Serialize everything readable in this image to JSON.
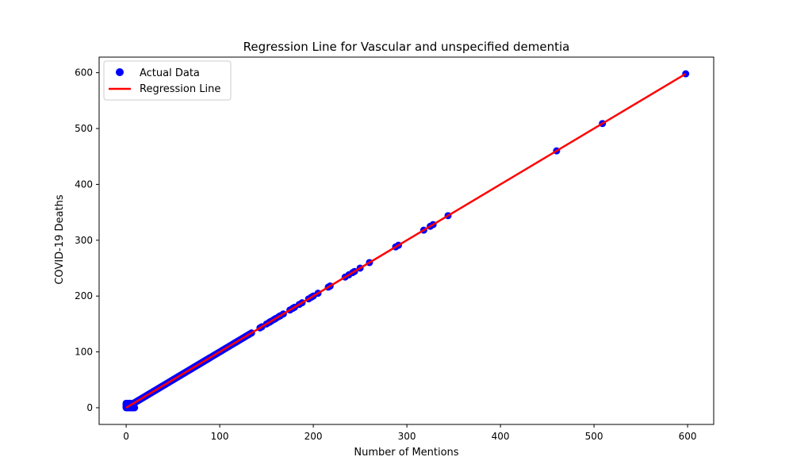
{
  "chart_data": {
    "type": "scatter",
    "title": "Regression Line for Vascular and unspecified dementia",
    "xlabel": "Number of Mentions",
    "ylabel": "COVID-19 Deaths",
    "xlim": [
      -28.9,
      627.9
    ],
    "ylim": [
      -29.9,
      627.9
    ],
    "xticks": [
      0,
      100,
      200,
      300,
      400,
      500,
      600
    ],
    "yticks": [
      0,
      100,
      200,
      300,
      400,
      500,
      600
    ],
    "grid": false,
    "legend": {
      "placement": "top-left",
      "entries": [
        "Actual Data",
        "Regression Line"
      ]
    },
    "colors": {
      "points": "#0000ff",
      "line": "#ff0000"
    },
    "series": [
      {
        "name": "Actual Data",
        "kind": "scatter",
        "points": [
          [
            0,
            0
          ],
          [
            0,
            1
          ],
          [
            0,
            2
          ],
          [
            0,
            4
          ],
          [
            0,
            6
          ],
          [
            0,
            8
          ],
          [
            1,
            0
          ],
          [
            1,
            1
          ],
          [
            1,
            3
          ],
          [
            1,
            7
          ],
          [
            2,
            0
          ],
          [
            2,
            2
          ],
          [
            2,
            5
          ],
          [
            2,
            8
          ],
          [
            3,
            0
          ],
          [
            3,
            3
          ],
          [
            3,
            6
          ],
          [
            4,
            0
          ],
          [
            4,
            4
          ],
          [
            4,
            8
          ],
          [
            5,
            0
          ],
          [
            5,
            5
          ],
          [
            5,
            8
          ],
          [
            6,
            0
          ],
          [
            6,
            6
          ],
          [
            7,
            0
          ],
          [
            7,
            7
          ],
          [
            8,
            0
          ],
          [
            8,
            8
          ],
          [
            9,
            0
          ],
          [
            9,
            9
          ],
          [
            10,
            10
          ],
          [
            11,
            11
          ],
          [
            12,
            12
          ],
          [
            13,
            13
          ],
          [
            14,
            14
          ],
          [
            15,
            15
          ],
          [
            16,
            16
          ],
          [
            17,
            17
          ],
          [
            18,
            18
          ],
          [
            19,
            19
          ],
          [
            20,
            20
          ],
          [
            21,
            21
          ],
          [
            22,
            22
          ],
          [
            23,
            23
          ],
          [
            24,
            24
          ],
          [
            25,
            25
          ],
          [
            26,
            26
          ],
          [
            27,
            27
          ],
          [
            28,
            28
          ],
          [
            29,
            29
          ],
          [
            30,
            30
          ],
          [
            31,
            31
          ],
          [
            32,
            32
          ],
          [
            33,
            33
          ],
          [
            34,
            34
          ],
          [
            35,
            35
          ],
          [
            36,
            36
          ],
          [
            37,
            37
          ],
          [
            38,
            38
          ],
          [
            39,
            39
          ],
          [
            40,
            40
          ],
          [
            41,
            41
          ],
          [
            42,
            42
          ],
          [
            43,
            43
          ],
          [
            44,
            44
          ],
          [
            45,
            45
          ],
          [
            46,
            46
          ],
          [
            47,
            47
          ],
          [
            48,
            48
          ],
          [
            49,
            49
          ],
          [
            50,
            50
          ],
          [
            51,
            51
          ],
          [
            52,
            52
          ],
          [
            53,
            53
          ],
          [
            54,
            54
          ],
          [
            55,
            55
          ],
          [
            56,
            56
          ],
          [
            57,
            57
          ],
          [
            58,
            58
          ],
          [
            59,
            59
          ],
          [
            60,
            60
          ],
          [
            61,
            61
          ],
          [
            62,
            62
          ],
          [
            63,
            63
          ],
          [
            64,
            64
          ],
          [
            65,
            65
          ],
          [
            66,
            66
          ],
          [
            67,
            67
          ],
          [
            68,
            68
          ],
          [
            69,
            69
          ],
          [
            70,
            70
          ],
          [
            71,
            71
          ],
          [
            72,
            72
          ],
          [
            73,
            73
          ],
          [
            74,
            74
          ],
          [
            75,
            75
          ],
          [
            76,
            76
          ],
          [
            77,
            77
          ],
          [
            78,
            78
          ],
          [
            79,
            79
          ],
          [
            80,
            80
          ],
          [
            81,
            81
          ],
          [
            82,
            82
          ],
          [
            83,
            83
          ],
          [
            84,
            84
          ],
          [
            85,
            85
          ],
          [
            86,
            86
          ],
          [
            87,
            87
          ],
          [
            88,
            88
          ],
          [
            89,
            89
          ],
          [
            90,
            90
          ],
          [
            92,
            92
          ],
          [
            94,
            94
          ],
          [
            96,
            96
          ],
          [
            98,
            98
          ],
          [
            100,
            100
          ],
          [
            102,
            102
          ],
          [
            104,
            104
          ],
          [
            106,
            106
          ],
          [
            108,
            108
          ],
          [
            110,
            110
          ],
          [
            112,
            112
          ],
          [
            114,
            114
          ],
          [
            116,
            116
          ],
          [
            118,
            118
          ],
          [
            120,
            120
          ],
          [
            122,
            122
          ],
          [
            124,
            124
          ],
          [
            126,
            126
          ],
          [
            128,
            128
          ],
          [
            130,
            130
          ],
          [
            132,
            132
          ],
          [
            134,
            134
          ],
          [
            143,
            143
          ],
          [
            145,
            145
          ],
          [
            150,
            150
          ],
          [
            153,
            153
          ],
          [
            155,
            155
          ],
          [
            158,
            158
          ],
          [
            160,
            160
          ],
          [
            163,
            163
          ],
          [
            165,
            165
          ],
          [
            168,
            168
          ],
          [
            175,
            175
          ],
          [
            178,
            178
          ],
          [
            180,
            180
          ],
          [
            185,
            185
          ],
          [
            188,
            188
          ],
          [
            195,
            195
          ],
          [
            198,
            198
          ],
          [
            200,
            200
          ],
          [
            205,
            205
          ],
          [
            216,
            216
          ],
          [
            218,
            218
          ],
          [
            234,
            234
          ],
          [
            238,
            238
          ],
          [
            242,
            242
          ],
          [
            244,
            244
          ],
          [
            250,
            250
          ],
          [
            260,
            260
          ],
          [
            288,
            288
          ],
          [
            291,
            291
          ],
          [
            318,
            318
          ],
          [
            325,
            325
          ],
          [
            328,
            328
          ],
          [
            344,
            344
          ],
          [
            460,
            460
          ],
          [
            509,
            509
          ],
          [
            598,
            598
          ]
        ]
      },
      {
        "name": "Regression Line",
        "kind": "line",
        "points": [
          [
            0,
            0
          ],
          [
            598,
            598
          ]
        ]
      }
    ]
  }
}
